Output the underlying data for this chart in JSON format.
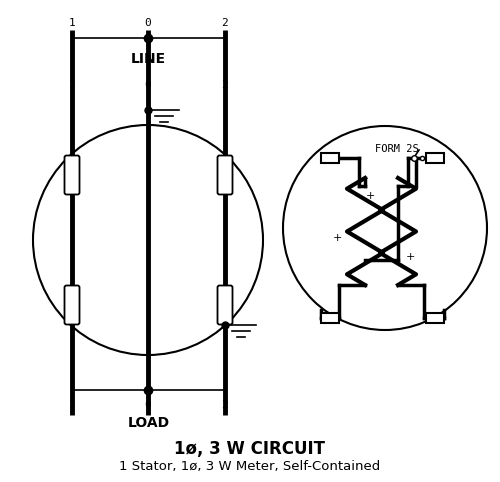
{
  "title1": "1ø, 3 W CIRCUIT",
  "title2": "1 Stator, 1ø, 3 W Meter, Self-Contained",
  "bg_color": "#ffffff",
  "line_color": "#000000",
  "fig_width": 5.0,
  "fig_height": 4.82,
  "dpi": 100,
  "line_label": "LINE",
  "load_label": "LOAD",
  "form_label": "FORM 2S"
}
